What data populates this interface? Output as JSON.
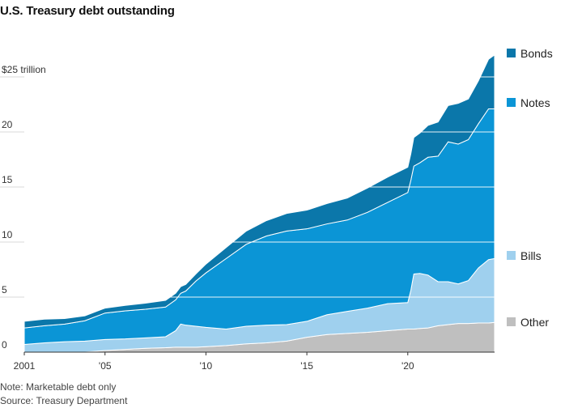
{
  "title": "U.S. Treasury debt outstanding",
  "note": "Note: Marketable debt only",
  "source": "Source: Treasury Department",
  "chart_data": {
    "type": "area",
    "stacked": true,
    "title": "U.S. Treasury debt outstanding",
    "ylabel": "$25 trillion",
    "ylim": [
      0,
      27.5
    ],
    "yticks": [
      0,
      5,
      10,
      15,
      20,
      25
    ],
    "ytick_labels": [
      "0",
      "5",
      "10",
      "15",
      "20",
      "$25 trillion"
    ],
    "xlim": [
      2001,
      2024.3
    ],
    "xticks": [
      2001,
      2005,
      2010,
      2015,
      2020
    ],
    "xtick_labels": [
      "2001",
      "'05",
      "'10",
      "'15",
      "'20"
    ],
    "grid": true,
    "legend_position": "right",
    "x": [
      2001.0,
      2002.0,
      2003.0,
      2004.0,
      2005.0,
      2006.0,
      2007.0,
      2008.0,
      2008.5,
      2008.75,
      2009.0,
      2009.5,
      2010.0,
      2011.0,
      2012.0,
      2013.0,
      2014.0,
      2015.0,
      2016.0,
      2017.0,
      2018.0,
      2019.0,
      2020.0,
      2020.15,
      2020.3,
      2020.6,
      2021.0,
      2021.5,
      2022.0,
      2022.5,
      2023.0,
      2023.5,
      2024.0,
      2024.3
    ],
    "series": [
      {
        "name": "Other",
        "color": "#bfbfbf",
        "values": [
          0.0,
          0.0,
          0.0,
          0.0,
          0.15,
          0.25,
          0.35,
          0.4,
          0.45,
          0.45,
          0.45,
          0.45,
          0.5,
          0.6,
          0.75,
          0.85,
          1.0,
          1.35,
          1.6,
          1.7,
          1.8,
          1.95,
          2.1,
          2.1,
          2.1,
          2.15,
          2.2,
          2.4,
          2.5,
          2.6,
          2.6,
          2.65,
          2.65,
          2.7
        ]
      },
      {
        "name": "Bills",
        "color": "#9fd0ee",
        "values": [
          0.7,
          0.85,
          0.95,
          1.0,
          1.0,
          0.95,
          0.95,
          1.0,
          1.5,
          2.1,
          2.0,
          1.9,
          1.75,
          1.5,
          1.6,
          1.6,
          1.5,
          1.45,
          1.8,
          2.0,
          2.2,
          2.45,
          2.4,
          3.5,
          5.0,
          5.0,
          4.8,
          4.0,
          3.9,
          3.6,
          3.9,
          5.0,
          5.75,
          5.8
        ]
      },
      {
        "name": "Notes",
        "color": "#0b95d6",
        "values": [
          1.5,
          1.55,
          1.6,
          1.85,
          2.4,
          2.55,
          2.6,
          2.7,
          2.8,
          2.8,
          3.1,
          4.1,
          4.95,
          6.4,
          7.45,
          8.1,
          8.5,
          8.4,
          8.25,
          8.3,
          8.7,
          9.2,
          10.0,
          10.0,
          9.8,
          10.05,
          10.7,
          11.4,
          12.7,
          12.7,
          12.8,
          13.1,
          13.7,
          13.6
        ]
      },
      {
        "name": "Bonds",
        "color": "#0b77aa",
        "values": [
          0.6,
          0.6,
          0.5,
          0.45,
          0.45,
          0.5,
          0.55,
          0.6,
          0.6,
          0.6,
          0.6,
          0.65,
          0.8,
          1.0,
          1.2,
          1.4,
          1.6,
          1.7,
          1.85,
          2.0,
          2.2,
          2.3,
          2.3,
          2.4,
          2.6,
          2.7,
          2.9,
          3.1,
          3.3,
          3.7,
          3.7,
          3.9,
          4.5,
          4.9
        ]
      }
    ]
  }
}
